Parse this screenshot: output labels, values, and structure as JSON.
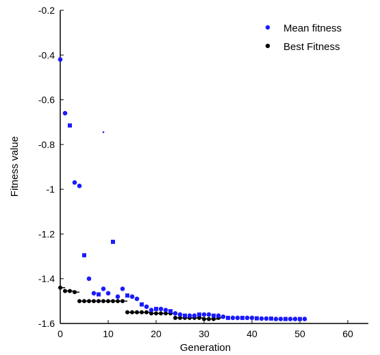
{
  "chart_data": {
    "type": "scatter",
    "title": "",
    "xlabel": "Generation",
    "ylabel": "Fitness value",
    "xlim": [
      0,
      60
    ],
    "ylim": [
      -1.6,
      -0.2
    ],
    "x_ticks": [
      "0",
      "10",
      "20",
      "30",
      "40",
      "50",
      "60"
    ],
    "y_ticks": [
      "-0.2",
      "-0.4",
      "-0.6",
      "-0.8",
      "-1",
      "-1.2",
      "-1.4",
      "-1.6"
    ],
    "grid": false,
    "legend_position": "top-right",
    "series": [
      {
        "name": "Mean fitness",
        "color": "#1a1aff",
        "x": [
          0,
          1,
          2,
          3,
          4,
          5,
          6,
          7,
          8,
          9,
          10,
          11,
          12,
          13,
          14,
          15,
          16,
          17,
          18,
          19,
          20,
          21,
          22,
          23,
          24,
          25,
          26,
          27,
          28,
          29,
          30,
          31,
          32,
          33,
          34,
          35,
          36,
          37,
          38,
          39,
          40,
          41,
          42,
          43,
          44,
          45,
          46,
          47,
          48,
          49,
          50,
          51
        ],
        "y": [
          -0.42,
          -0.66,
          -0.715,
          -0.97,
          -0.985,
          -1.295,
          -1.4,
          -1.465,
          -1.47,
          -1.445,
          -1.465,
          -1.235,
          -1.48,
          -1.445,
          -1.475,
          -1.48,
          -1.49,
          -1.515,
          -1.525,
          -1.54,
          -1.535,
          -1.535,
          -1.54,
          -1.545,
          -1.555,
          -1.56,
          -1.565,
          -1.565,
          -1.565,
          -1.56,
          -1.56,
          -1.56,
          -1.565,
          -1.565,
          -1.57,
          -1.575,
          -1.575,
          -1.575,
          -1.575,
          -1.575,
          -1.575,
          -1.577,
          -1.578,
          -1.578,
          -1.578,
          -1.58,
          -1.58,
          -1.58,
          -1.58,
          -1.58,
          -1.58,
          -1.58
        ]
      },
      {
        "name": "Best Fitness",
        "color": "#000000",
        "x": [
          0,
          1,
          2,
          3,
          4,
          5,
          6,
          7,
          8,
          9,
          10,
          11,
          12,
          13,
          14,
          15,
          16,
          17,
          18,
          19,
          20,
          21,
          22,
          23,
          24,
          25,
          26,
          27,
          28,
          29,
          30,
          31,
          32,
          33
        ],
        "y": [
          -1.44,
          -1.455,
          -1.455,
          -1.46,
          -1.5,
          -1.5,
          -1.5,
          -1.5,
          -1.5,
          -1.5,
          -1.5,
          -1.5,
          -1.5,
          -1.5,
          -1.55,
          -1.55,
          -1.55,
          -1.55,
          -1.55,
          -1.555,
          -1.555,
          -1.555,
          -1.555,
          -1.555,
          -1.575,
          -1.575,
          -1.575,
          -1.575,
          -1.575,
          -1.575,
          -1.58,
          -1.58,
          -1.58,
          -1.575
        ]
      }
    ],
    "stray_points": [
      {
        "x": 9,
        "y": -0.745,
        "color": "#1a1aff"
      }
    ]
  }
}
